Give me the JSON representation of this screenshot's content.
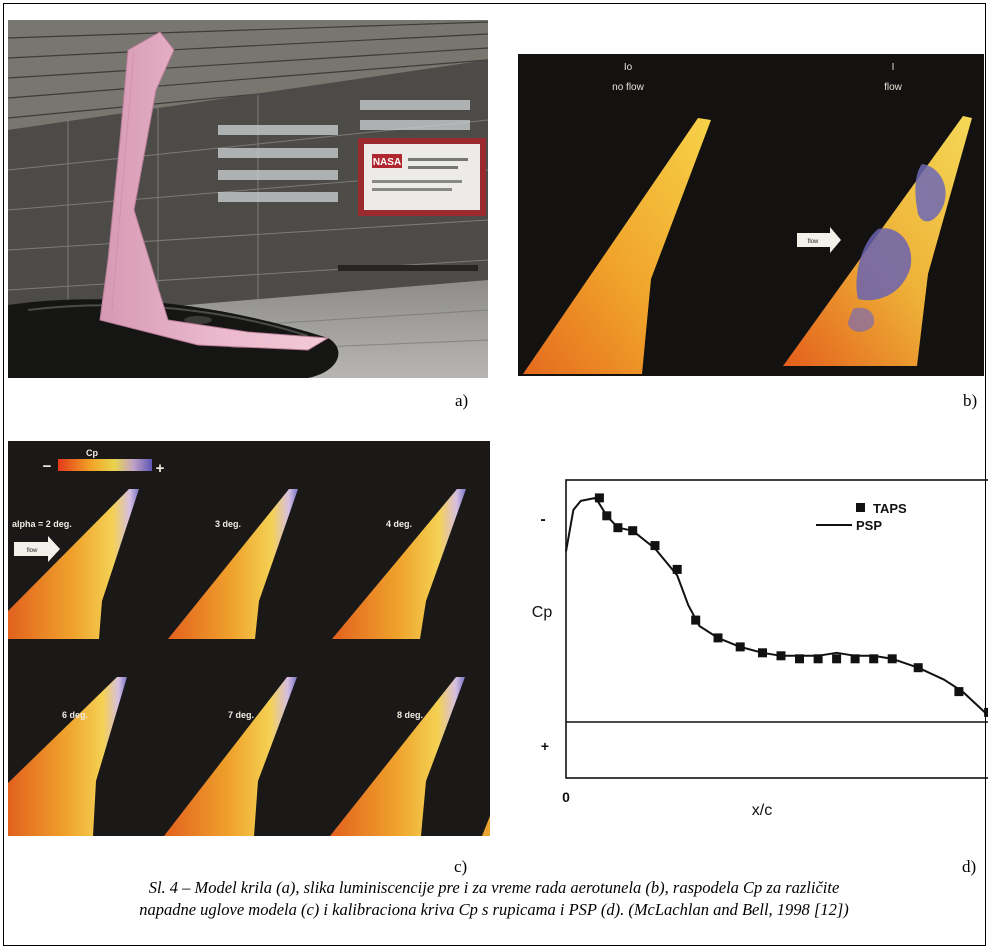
{
  "figure": {
    "panel_a": {
      "label": "a)",
      "sign": "NASA"
    },
    "panel_b": {
      "label": "b)",
      "left_title": "Io",
      "left_sub": "no flow",
      "right_title": "I",
      "right_sub": "flow",
      "arrow_text": "flow"
    },
    "panel_c": {
      "label": "c)",
      "legend_title": "Cp",
      "legend_minus": "−",
      "legend_plus": "+",
      "arrow_text": "flow",
      "wings": [
        "alpha = 2 deg.",
        "3 deg.",
        "4 deg.",
        "6 deg.",
        "7 deg.",
        "8 deg."
      ]
    },
    "panel_d": {
      "label": "d)",
      "ylabel": "Cp",
      "xlabel": "x/c",
      "y_top_tick": "-",
      "y_bottom_tick": "+",
      "x_zero_tick": "0",
      "legend_taps": "TAPS",
      "legend_psp": "PSP"
    }
  },
  "chart_data": {
    "type": "line",
    "xlabel": "x/c",
    "ylabel": "Cp",
    "series": [
      {
        "name": "TAPS",
        "style": "markers",
        "x": [
          0.09,
          0.11,
          0.14,
          0.18,
          0.24,
          0.3,
          0.35,
          0.41,
          0.47,
          0.53,
          0.58,
          0.63,
          0.68,
          0.73,
          0.78,
          0.83,
          0.88,
          0.95,
          1.06,
          1.14
        ],
        "y": [
          0.94,
          0.88,
          0.84,
          0.83,
          0.78,
          0.7,
          0.53,
          0.47,
          0.44,
          0.42,
          0.41,
          0.4,
          0.4,
          0.4,
          0.4,
          0.4,
          0.4,
          0.37,
          0.29,
          0.22
        ]
      },
      {
        "name": "PSP",
        "style": "solid",
        "x": [
          0.0,
          0.02,
          0.04,
          0.08,
          0.11,
          0.14,
          0.18,
          0.24,
          0.3,
          0.33,
          0.36,
          0.41,
          0.47,
          0.53,
          0.58,
          0.63,
          0.68,
          0.73,
          0.78,
          0.83,
          0.88,
          0.95,
          1.02,
          1.07,
          1.13,
          1.16
        ],
        "y": [
          0.76,
          0.9,
          0.93,
          0.94,
          0.88,
          0.84,
          0.83,
          0.77,
          0.68,
          0.58,
          0.51,
          0.47,
          0.44,
          0.42,
          0.41,
          0.41,
          0.41,
          0.42,
          0.41,
          0.41,
          0.4,
          0.37,
          0.33,
          0.29,
          0.22,
          0.18
        ]
      }
    ]
  },
  "caption": {
    "line1": "Sl. 4 – Model krila (a), slika luminiscencije pre i za vreme rada aerotunela (b), raspodela Cp za različite",
    "line2": "napadne uglove modela (c) i kalibraciona kriva Cp s rupicama i PSP (d). (McLachlan and Bell, 1998 [12])"
  }
}
